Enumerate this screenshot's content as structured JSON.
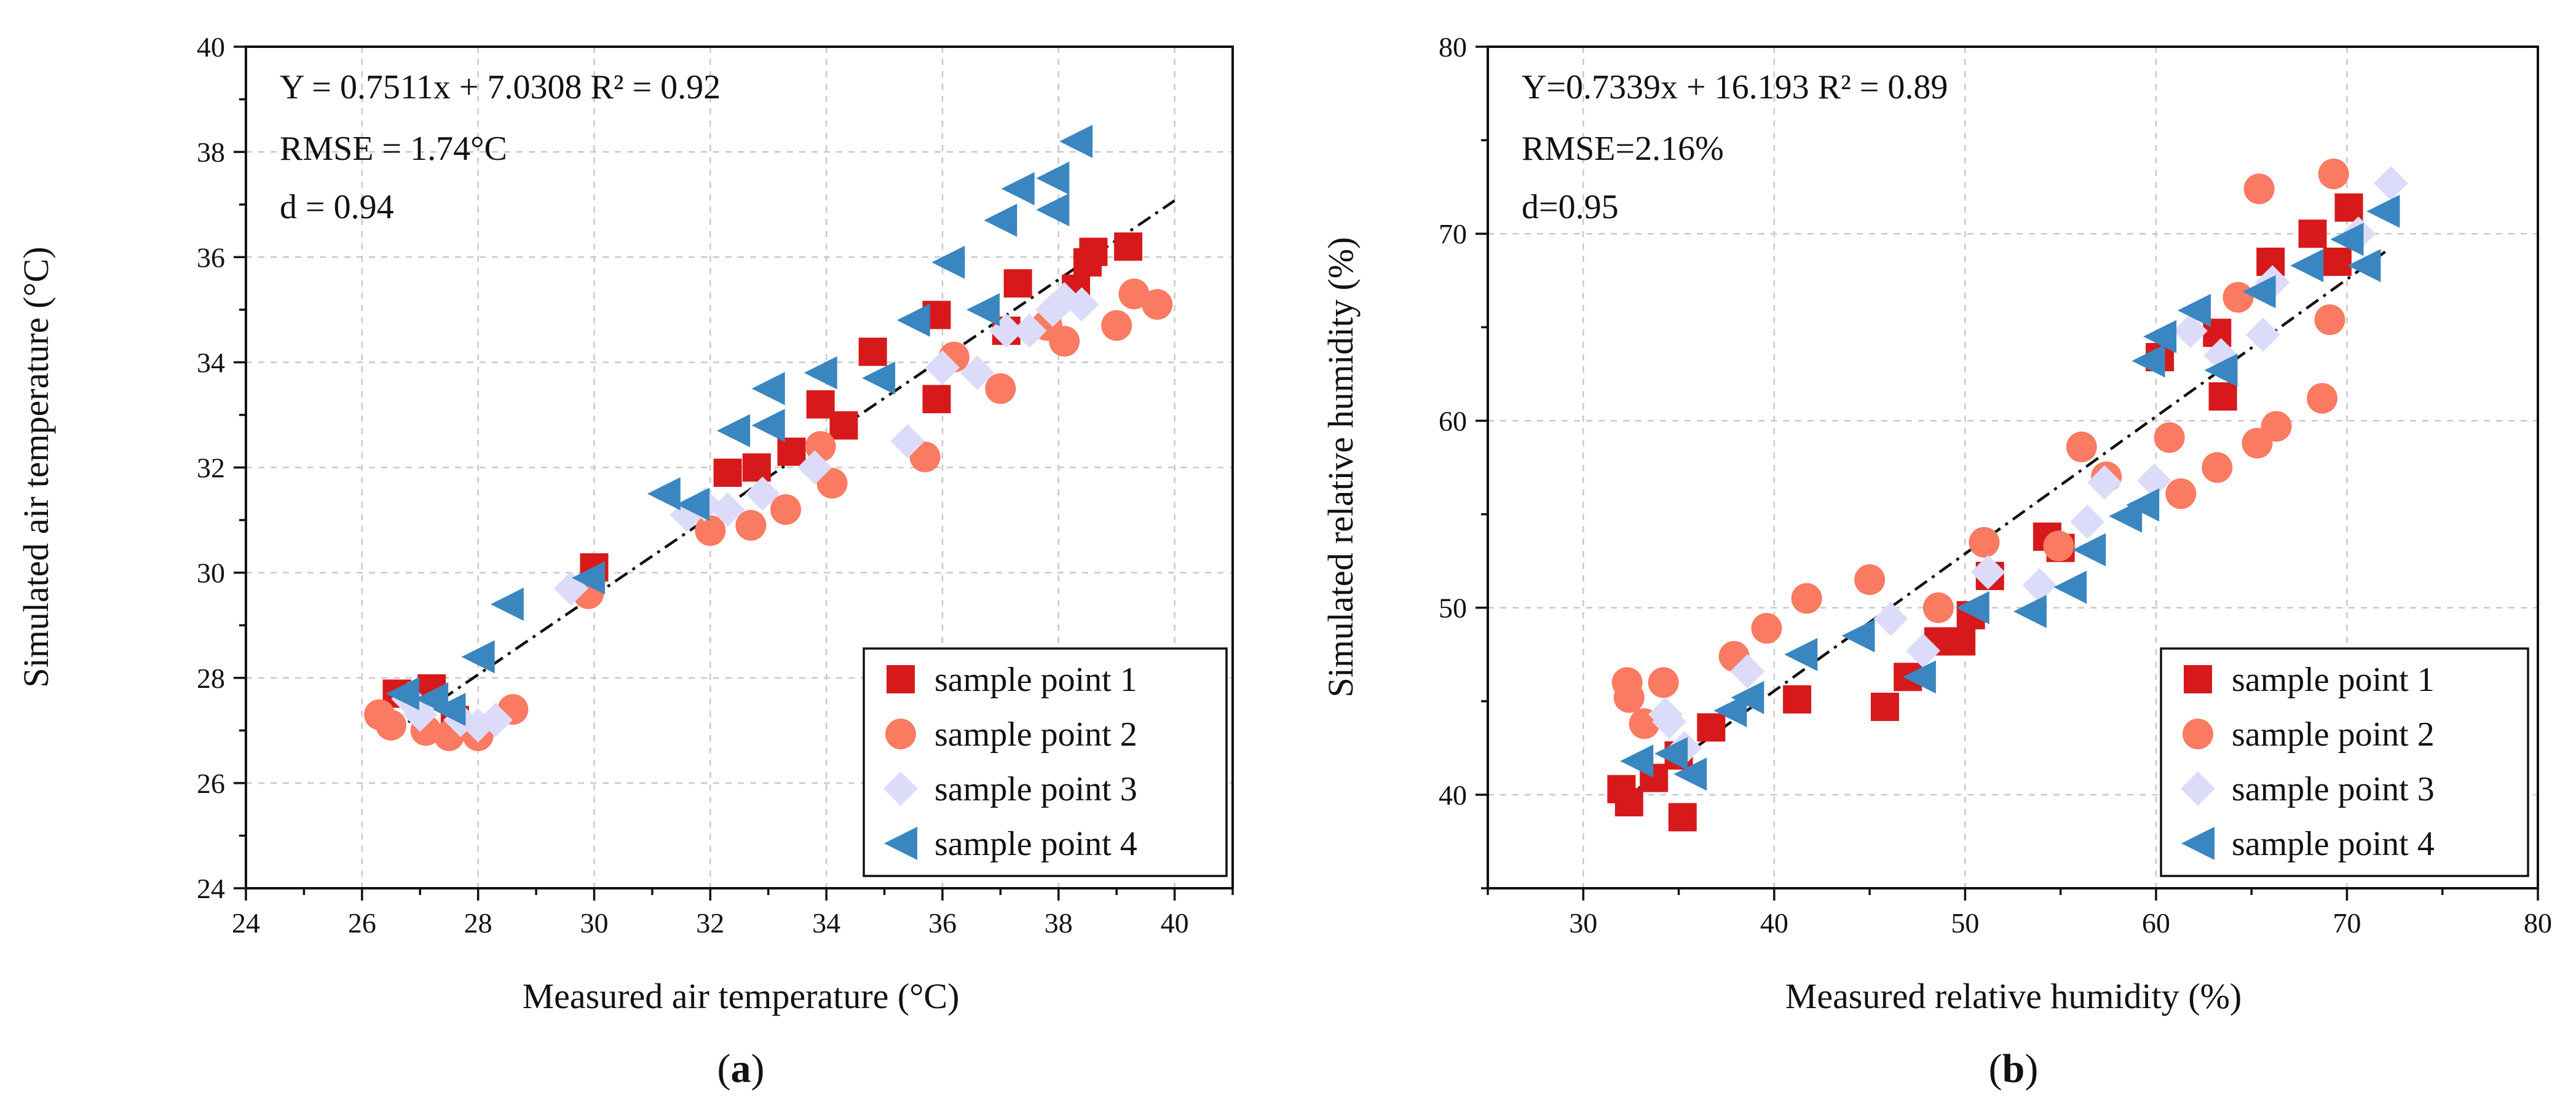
{
  "colors": {
    "sample_point_1": "#d7191c",
    "sample_point_2": "#fb7a62",
    "sample_point_3": "#dcdcfa",
    "sample_point_4": "#3a86c0"
  },
  "marker_shapes": [
    "square",
    "circle",
    "diamond",
    "triangle-left"
  ],
  "chart_data": [
    {
      "type": "scatter",
      "caption_open": "(",
      "caption_letter": "a",
      "caption_close": ")",
      "xlabel": "Measured air temperature (°C)",
      "ylabel": "Simulated air temperature (°C)",
      "xlim": [
        24,
        41
      ],
      "ylim": [
        24,
        40
      ],
      "xticks": [
        24,
        26,
        28,
        30,
        32,
        34,
        36,
        38,
        40
      ],
      "yticks": [
        24,
        26,
        28,
        30,
        32,
        34,
        36,
        38,
        40
      ],
      "grid": true,
      "legend_position": "bottom-right",
      "fit": {
        "slope": 0.7511,
        "intercept": 7.0308,
        "x_range": [
          26.5,
          40
        ]
      },
      "annotations": [
        "Y = 0.7511x + 7.0308  R² = 0.92",
        "RMSE = 1.74°C",
        "d = 0.94"
      ],
      "series": [
        {
          "name": "sample point 1",
          "x": [
            26.6,
            27.2,
            27.6,
            30.0,
            32.3,
            32.8,
            33.4,
            33.9,
            34.3,
            34.8,
            35.9,
            35.9,
            37.1,
            37.3,
            38.3,
            38.5,
            38.6,
            39.2
          ],
          "y": [
            27.7,
            27.8,
            27.2,
            30.1,
            31.9,
            32.0,
            32.3,
            33.2,
            32.8,
            34.2,
            33.3,
            34.9,
            34.6,
            35.5,
            35.4,
            35.9,
            36.1,
            36.2
          ]
        },
        {
          "name": "sample point 2",
          "x": [
            26.3,
            26.5,
            27.1,
            27.5,
            28.0,
            28.6,
            29.9,
            32.0,
            32.7,
            33.3,
            33.9,
            34.1,
            35.7,
            36.2,
            37.0,
            37.8,
            38.1,
            39.0,
            39.3,
            39.7
          ],
          "y": [
            27.3,
            27.1,
            27.0,
            26.9,
            26.9,
            27.4,
            29.6,
            30.8,
            30.9,
            31.2,
            32.4,
            31.7,
            32.2,
            34.1,
            33.5,
            34.7,
            34.4,
            34.7,
            35.3,
            35.1
          ]
        },
        {
          "name": "sample point 3",
          "x": [
            26.8,
            27.0,
            27.7,
            28.0,
            28.3,
            29.6,
            31.6,
            31.9,
            32.3,
            32.9,
            33.8,
            35.4,
            36.0,
            36.6,
            37.1,
            37.5,
            37.9,
            38.1,
            38.4
          ],
          "y": [
            27.6,
            27.3,
            27.2,
            27.1,
            27.2,
            29.7,
            31.1,
            31.3,
            31.2,
            31.5,
            32.0,
            32.5,
            33.9,
            33.8,
            34.6,
            34.6,
            35.0,
            35.2,
            35.1
          ]
        },
        {
          "name": "sample point 4",
          "x": [
            26.7,
            27.2,
            27.5,
            28.0,
            28.5,
            29.9,
            31.2,
            31.7,
            32.4,
            33.0,
            33.0,
            33.9,
            34.9,
            35.5,
            36.1,
            36.7,
            37.0,
            37.3,
            37.9,
            37.9,
            38.3
          ],
          "y": [
            27.7,
            27.6,
            27.4,
            28.4,
            29.4,
            29.9,
            31.5,
            31.3,
            32.7,
            33.5,
            32.8,
            33.8,
            33.7,
            34.8,
            35.9,
            35.0,
            36.7,
            37.3,
            37.5,
            36.9,
            38.2
          ]
        }
      ]
    },
    {
      "type": "scatter",
      "caption_open": "(",
      "caption_letter": "b",
      "caption_close": ")",
      "xlabel": "Measured relative humidity (%)",
      "ylabel": "Simulated relative humidity (%)",
      "xlim": [
        25,
        80
      ],
      "ylim": [
        35,
        80
      ],
      "xticks": [
        30,
        40,
        50,
        60,
        70,
        80
      ],
      "yticks": [
        40,
        50,
        60,
        70,
        80
      ],
      "grid": true,
      "legend_position": "bottom-right",
      "fit": {
        "slope": 0.7339,
        "intercept": 16.193,
        "x_range": [
          32,
          72
        ]
      },
      "annotations": [
        "Y=0.7339x + 16.193  R² = 0.89",
        "RMSE=2.16%",
        "d=0.95"
      ],
      "series": [
        {
          "name": "sample point 1",
          "x": [
            32.0,
            32.4,
            33.7,
            35.0,
            35.2,
            36.7,
            41.2,
            45.8,
            47.0,
            48.6,
            49.8,
            50.3,
            51.3,
            54.3,
            55.0,
            60.2,
            63.2,
            63.5,
            66.0,
            68.2,
            69.5,
            70.1
          ],
          "y": [
            40.3,
            39.6,
            40.9,
            42.1,
            38.8,
            43.6,
            45.1,
            44.7,
            46.3,
            48.2,
            48.2,
            49.6,
            51.7,
            53.8,
            53.2,
            63.4,
            64.7,
            61.3,
            68.5,
            70.0,
            68.5,
            71.4
          ]
        },
        {
          "name": "sample point 2",
          "x": [
            32.3,
            32.4,
            33.2,
            34.2,
            37.9,
            39.6,
            41.7,
            45.0,
            48.6,
            51.0,
            54.9,
            56.1,
            57.4,
            60.7,
            61.3,
            63.2,
            64.3,
            65.3,
            65.4,
            66.3,
            68.7,
            69.1,
            69.3
          ],
          "y": [
            46.0,
            45.2,
            43.8,
            46.0,
            47.4,
            48.9,
            50.5,
            51.5,
            50.0,
            53.5,
            53.3,
            58.6,
            57.0,
            59.1,
            56.1,
            57.5,
            66.6,
            58.8,
            72.4,
            59.7,
            61.2,
            65.4,
            73.2
          ]
        },
        {
          "name": "sample point 3",
          "x": [
            34.3,
            34.5,
            35.3,
            38.6,
            46.1,
            47.8,
            51.2,
            53.9,
            56.4,
            57.3,
            59.9,
            61.8,
            63.4,
            65.6,
            66.1,
            70.6,
            72.3
          ],
          "y": [
            44.3,
            43.9,
            42.5,
            46.6,
            49.4,
            47.7,
            51.9,
            51.2,
            54.6,
            56.7,
            56.8,
            64.8,
            63.5,
            64.6,
            67.4,
            70.0,
            72.7
          ]
        },
        {
          "name": "sample point 4",
          "x": [
            32.8,
            34.6,
            35.6,
            37.7,
            38.6,
            41.4,
            44.4,
            47.6,
            50.4,
            53.4,
            55.5,
            56.5,
            58.4,
            59.3,
            59.6,
            60.2,
            62.0,
            63.4,
            65.4,
            67.9,
            70.0,
            70.9,
            71.9
          ],
          "y": [
            41.8,
            42.2,
            41.1,
            44.5,
            45.2,
            47.5,
            48.5,
            46.3,
            50.0,
            49.8,
            51.1,
            53.1,
            54.9,
            55.5,
            63.2,
            64.5,
            65.9,
            62.7,
            66.9,
            68.3,
            69.7,
            68.3,
            71.2
          ]
        }
      ]
    }
  ]
}
